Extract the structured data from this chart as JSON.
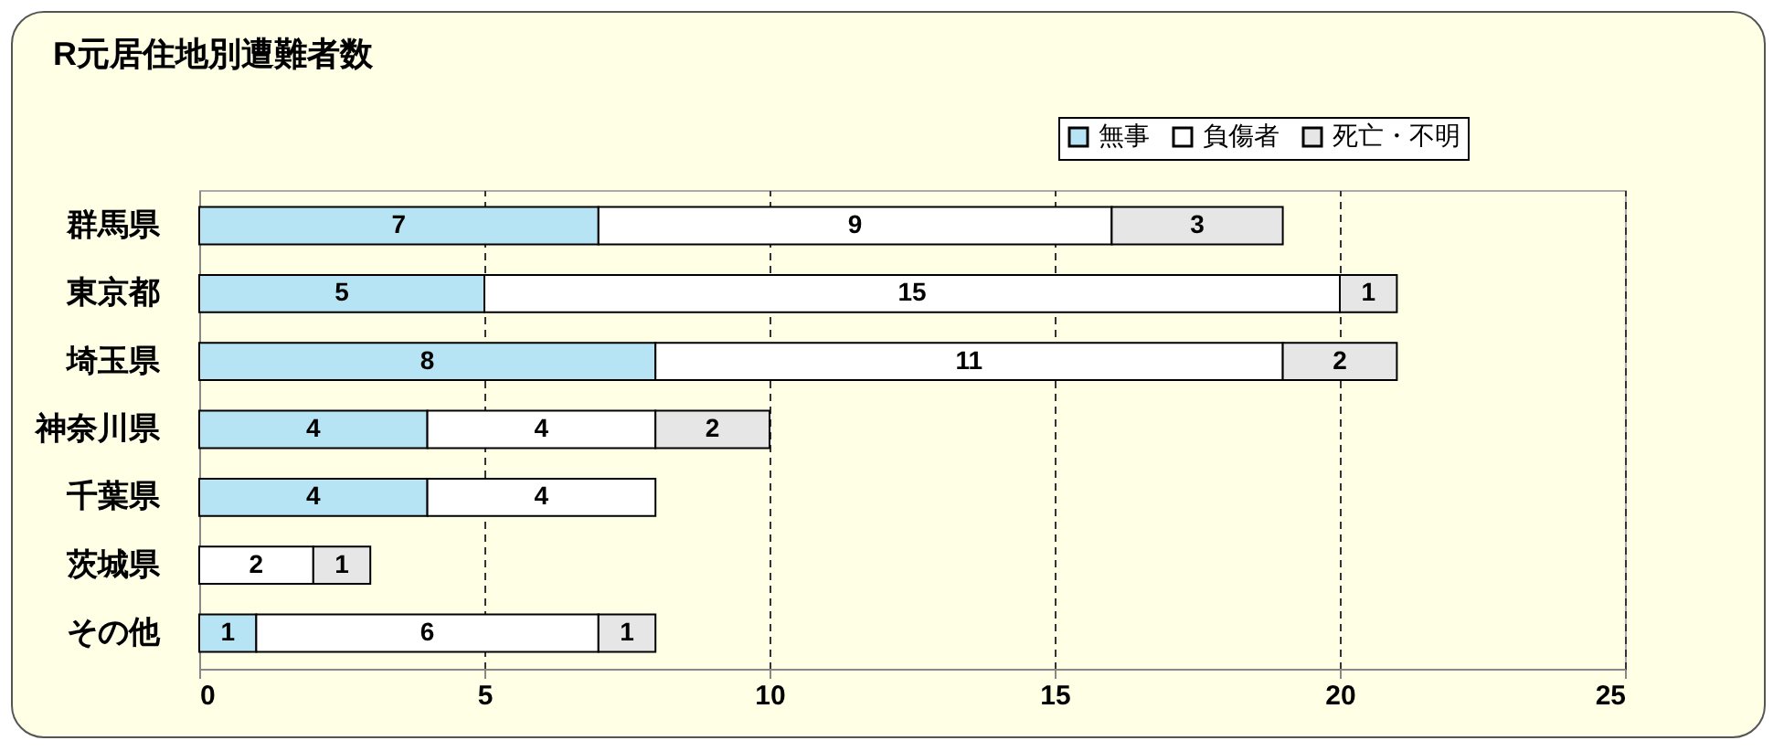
{
  "chart_data": {
    "type": "bar",
    "title": "R元居住地別遭難者数",
    "orientation": "horizontal",
    "stacked": true,
    "categories": [
      "群馬県",
      "東京都",
      "埼玉県",
      "神奈川県",
      "千葉県",
      "茨城県",
      "その他"
    ],
    "series": [
      {
        "name": "無事",
        "color": "#b7e4f4",
        "values": [
          7,
          5,
          8,
          4,
          4,
          null,
          1
        ]
      },
      {
        "name": "負傷者",
        "color": "#ffffff",
        "values": [
          9,
          15,
          11,
          4,
          4,
          2,
          6
        ]
      },
      {
        "name": "死亡・不明",
        "color": "#e6e6e6",
        "values": [
          3,
          1,
          2,
          2,
          null,
          1,
          1
        ]
      }
    ],
    "xlim": [
      0,
      25
    ],
    "xticks": [
      0,
      5,
      10,
      15,
      20,
      25
    ],
    "grid": "x",
    "legend": "top right",
    "data_labels": true
  }
}
